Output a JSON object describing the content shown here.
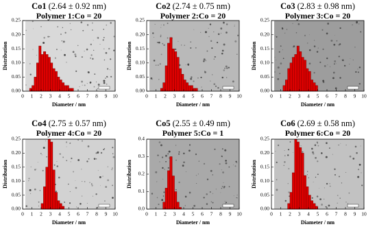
{
  "chart_data": [
    {
      "type": "histogram",
      "title": "Co1",
      "size_label": "(2.64 ± 0.92 nm)",
      "condition": "Polymer 1:Co = 20",
      "x_label": "Diameter / nm",
      "y_label": "Distribution",
      "color": "#dd0000",
      "bins": [
        0.75,
        1.0,
        1.25,
        1.5,
        1.75,
        2.0,
        2.25,
        2.5,
        2.75,
        3.0,
        3.25,
        3.5,
        3.75,
        4.0,
        4.25,
        4.5,
        4.75,
        5.0,
        5.25,
        5.5
      ],
      "values": [
        0.01,
        0.02,
        0.05,
        0.1,
        0.16,
        0.13,
        0.14,
        0.13,
        0.12,
        0.1,
        0.08,
        0.07,
        0.05,
        0.04,
        0.03,
        0.02,
        0.02,
        0.01,
        0.01
      ],
      "xlim": [
        0,
        10
      ],
      "xticks": [
        0,
        1,
        2,
        3,
        4,
        5,
        6,
        7,
        8,
        9,
        10
      ],
      "ylim": [
        0,
        0.25
      ],
      "yticks": [
        {
          "value": 0,
          "label": "0.00"
        },
        {
          "value": 0.05,
          "label": "0.05"
        },
        {
          "value": 0.1,
          "label": "0.10"
        },
        {
          "value": 0.15,
          "label": "0.15"
        },
        {
          "value": 0.2,
          "label": "0.20"
        },
        {
          "value": 0.25,
          "label": "0.25"
        }
      ]
    },
    {
      "type": "histogram",
      "title": "Co2",
      "size_label": "(2.74 ± 0.75 nm)",
      "condition": "Polymer 2:Co = 20",
      "x_label": "Diameter / nm",
      "y_label": "Distribution",
      "color": "#dd0000",
      "bins": [
        1.5,
        1.75,
        2.0,
        2.25,
        2.5,
        2.75,
        3.0,
        3.25,
        3.5,
        3.75,
        4.0,
        4.25,
        4.5,
        4.75,
        5.0,
        5.25,
        5.5
      ],
      "values": [
        0.01,
        0.03,
        0.09,
        0.17,
        0.19,
        0.15,
        0.14,
        0.12,
        0.08,
        0.06,
        0.04,
        0.03,
        0.02,
        0.02,
        0.01,
        0.01
      ],
      "xlim": [
        0,
        10
      ],
      "xticks": [
        0,
        1,
        2,
        3,
        4,
        5,
        6,
        7,
        8,
        9,
        10
      ],
      "ylim": [
        0,
        0.25
      ],
      "yticks": [
        {
          "value": 0,
          "label": "0.00"
        },
        {
          "value": 0.05,
          "label": "0.05"
        },
        {
          "value": 0.1,
          "label": "0.10"
        },
        {
          "value": 0.15,
          "label": "0.15"
        },
        {
          "value": 0.2,
          "label": "0.20"
        },
        {
          "value": 0.25,
          "label": "0.25"
        }
      ]
    },
    {
      "type": "histogram",
      "title": "Co3",
      "size_label": "(2.83 ± 0.98 nm)",
      "condition": "Polymer 3:Co = 20",
      "x_label": "Diameter / nm",
      "y_label": "Distribution",
      "color": "#dd0000",
      "bins": [
        1.25,
        1.5,
        1.75,
        2.0,
        2.25,
        2.5,
        2.75,
        3.0,
        3.25,
        3.5,
        3.75,
        4.0,
        4.25,
        4.5,
        4.75,
        5.0
      ],
      "values": [
        0.02,
        0.04,
        0.08,
        0.1,
        0.12,
        0.13,
        0.16,
        0.14,
        0.12,
        0.11,
        0.08,
        0.07,
        0.04,
        0.03,
        0.02
      ],
      "xlim": [
        0,
        10
      ],
      "xticks": [
        0,
        1,
        2,
        3,
        4,
        5,
        6,
        7,
        8,
        9,
        10
      ],
      "ylim": [
        0,
        0.25
      ],
      "yticks": [
        {
          "value": 0,
          "label": "0.00"
        },
        {
          "value": 0.05,
          "label": "0.05"
        },
        {
          "value": 0.1,
          "label": "0.10"
        },
        {
          "value": 0.15,
          "label": "0.15"
        },
        {
          "value": 0.2,
          "label": "0.20"
        },
        {
          "value": 0.25,
          "label": "0.25"
        }
      ]
    },
    {
      "type": "histogram",
      "title": "Co4",
      "size_label": "(2.75 ± 0.57 nm)",
      "condition": "Polymer 4:Co = 20",
      "x_label": "Diameter / nm",
      "y_label": "Distribution",
      "color": "#dd0000",
      "bins": [
        2.0,
        2.25,
        2.5,
        2.75,
        3.0,
        3.25,
        3.5,
        3.75,
        4.0,
        4.25,
        4.5
      ],
      "values": [
        0.02,
        0.08,
        0.15,
        0.25,
        0.24,
        0.14,
        0.06,
        0.03,
        0.02,
        0.01
      ],
      "xlim": [
        0,
        10
      ],
      "xticks": [
        0,
        1,
        2,
        3,
        4,
        5,
        6,
        7,
        8,
        9,
        10
      ],
      "ylim": [
        0,
        0.25
      ],
      "yticks": [
        {
          "value": 0,
          "label": "0.00"
        },
        {
          "value": 0.05,
          "label": "0.05"
        },
        {
          "value": 0.1,
          "label": "0.10"
        },
        {
          "value": 0.15,
          "label": "0.15"
        },
        {
          "value": 0.2,
          "label": "0.20"
        },
        {
          "value": 0.25,
          "label": "0.25"
        }
      ]
    },
    {
      "type": "histogram",
      "title": "Co5",
      "size_label": "(2.55 ± 0.49 nm)",
      "condition": "Polymer 5:Co = 1",
      "x_label": "Diameter / nm",
      "y_label": "Distribution",
      "color": "#dd0000",
      "bins": [
        1.75,
        2.0,
        2.25,
        2.5,
        2.75,
        3.0,
        3.25,
        3.5,
        3.75
      ],
      "values": [
        0.04,
        0.12,
        0.22,
        0.3,
        0.19,
        0.1,
        0.04,
        0.01
      ],
      "xlim": [
        0,
        10
      ],
      "xticks": [
        0,
        1,
        2,
        3,
        4,
        5,
        6,
        7,
        8,
        9,
        10
      ],
      "ylim": [
        0,
        0.4
      ],
      "yticks": [
        {
          "value": 0,
          "label": "0.0"
        },
        {
          "value": 0.1,
          "label": "0.1"
        },
        {
          "value": 0.2,
          "label": "0.2"
        },
        {
          "value": 0.3,
          "label": "0.3"
        },
        {
          "value": 0.4,
          "label": "0.4"
        }
      ]
    },
    {
      "type": "histogram",
      "title": "Co6",
      "size_label": "(2.69 ± 0.58 nm)",
      "condition": "Polymer 6:Co = 20",
      "x_label": "Diameter / nm",
      "y_label": "Distribution",
      "color": "#dd0000",
      "bins": [
        1.75,
        2.0,
        2.25,
        2.5,
        2.75,
        3.0,
        3.25,
        3.5,
        3.75,
        4.0,
        4.25,
        4.5,
        4.75,
        5.0
      ],
      "values": [
        0.02,
        0.06,
        0.13,
        0.25,
        0.24,
        0.22,
        0.2,
        0.12,
        0.08,
        0.05,
        0.03,
        0.02,
        0.01
      ],
      "xlim": [
        0,
        10
      ],
      "xticks": [
        0,
        1,
        2,
        3,
        4,
        5,
        6,
        7,
        8,
        9,
        10
      ],
      "ylim": [
        0,
        0.25
      ],
      "yticks": [
        {
          "value": 0,
          "label": "0.00"
        },
        {
          "value": 0.05,
          "label": "0.05"
        },
        {
          "value": 0.1,
          "label": "0.10"
        },
        {
          "value": 0.15,
          "label": "0.15"
        },
        {
          "value": 0.2,
          "label": "0.20"
        },
        {
          "value": 0.25,
          "label": "0.25"
        }
      ]
    }
  ]
}
